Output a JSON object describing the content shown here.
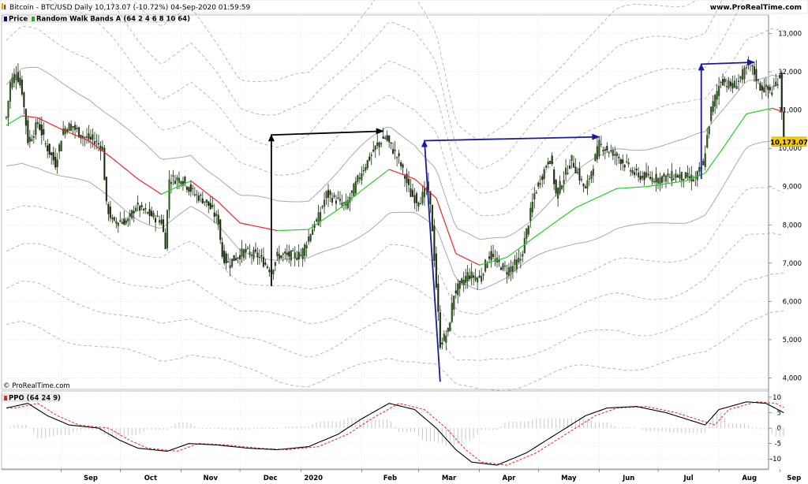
{
  "header": {
    "title": "Bitcoin - BTC/USD Daily 10,173.07 (-10.72%) 04-Sep-2020 01:59:59",
    "website": "www.ProRealTime.com",
    "watermark": "© ProRealTime.com"
  },
  "legend": {
    "price_label": "Price",
    "bands_label": "Random Walk Bands A (64 2 4 6 8 10 64)",
    "ppo_label": "PPO (64 24 9)"
  },
  "colors": {
    "bullish_candle": "#2f5f1f",
    "bearish_candle": "#1a2e10",
    "ma_up": "#22cc22",
    "ma_down": "#ee2222",
    "inner_band": "#aaaaaa",
    "outer_bands": "#aaaaaa",
    "arrow_black": "#000000",
    "arrow_blue": "#1a1aa0",
    "price_tag": "#f5cc00",
    "ppo_line": "#000000",
    "ppo_signal": "#ee2222",
    "ppo_hist": "#c8c8c8"
  },
  "chart_data": [
    {
      "type": "candlestick",
      "title": "Bitcoin - BTC/USD Daily",
      "last_price": "10,173.07",
      "y_ticks": [
        "4,000",
        "5,000",
        "6,000",
        "7,000",
        "8,000",
        "9,000",
        "10,000",
        "11,000",
        "12,000",
        "13,000"
      ],
      "x_ticks": [
        "Sep",
        "Oct",
        "Nov",
        "Dec",
        "2020",
        "Feb",
        "Mar",
        "Apr",
        "May",
        "Jun",
        "Jul",
        "Aug",
        "Sep"
      ],
      "ylim": [
        3700,
        13300
      ],
      "price_path": [
        [
          "2019-08-04",
          10800
        ],
        [
          "2019-08-06",
          11700
        ],
        [
          "2019-08-09",
          12000
        ],
        [
          "2019-08-12",
          11500
        ],
        [
          "2019-08-15",
          10200
        ],
        [
          "2019-08-18",
          10400
        ],
        [
          "2019-08-20",
          10700
        ],
        [
          "2019-08-24",
          10100
        ],
        [
          "2019-08-29",
          9600
        ],
        [
          "2019-09-02",
          10500
        ],
        [
          "2019-09-06",
          10600
        ],
        [
          "2019-09-12",
          10300
        ],
        [
          "2019-09-18",
          10200
        ],
        [
          "2019-09-22",
          10000
        ],
        [
          "2019-09-24",
          8500
        ],
        [
          "2019-09-27",
          8100
        ],
        [
          "2019-10-05",
          8100
        ],
        [
          "2019-10-09",
          8500
        ],
        [
          "2019-10-15",
          8300
        ],
        [
          "2019-10-22",
          8100
        ],
        [
          "2019-10-24",
          7500
        ],
        [
          "2019-10-26",
          9200
        ],
        [
          "2019-11-01",
          9200
        ],
        [
          "2019-11-08",
          8800
        ],
        [
          "2019-11-14",
          8600
        ],
        [
          "2019-11-20",
          8100
        ],
        [
          "2019-11-22",
          7200
        ],
        [
          "2019-11-25",
          7000
        ],
        [
          "2019-12-03",
          7300
        ],
        [
          "2019-12-10",
          7200
        ],
        [
          "2019-12-17",
          6800
        ],
        [
          "2019-12-20",
          7200
        ],
        [
          "2019-12-26",
          7200
        ],
        [
          "2020-01-01",
          7200
        ],
        [
          "2020-01-06",
          7800
        ],
        [
          "2020-01-10",
          8200
        ],
        [
          "2020-01-14",
          8800
        ],
        [
          "2020-01-24",
          8500
        ],
        [
          "2020-02-01",
          9400
        ],
        [
          "2020-02-09",
          10100
        ],
        [
          "2020-02-13",
          10300
        ],
        [
          "2020-02-20",
          9700
        ],
        [
          "2020-02-26",
          8800
        ],
        [
          "2020-03-01",
          8600
        ],
        [
          "2020-03-06",
          9000
        ],
        [
          "2020-03-08",
          7900
        ],
        [
          "2020-03-12",
          4900
        ],
        [
          "2020-03-16",
          5200
        ],
        [
          "2020-03-19",
          6200
        ],
        [
          "2020-03-26",
          6700
        ],
        [
          "2020-04-01",
          6600
        ],
        [
          "2020-04-06",
          7200
        ],
        [
          "2020-04-15",
          6800
        ],
        [
          "2020-04-22",
          7100
        ],
        [
          "2020-04-29",
          8800
        ],
        [
          "2020-05-07",
          9800
        ],
        [
          "2020-05-10",
          8800
        ],
        [
          "2020-05-18",
          9700
        ],
        [
          "2020-05-25",
          8900
        ],
        [
          "2020-06-01",
          10100
        ],
        [
          "2020-06-10",
          9800
        ],
        [
          "2020-06-20",
          9300
        ],
        [
          "2020-07-01",
          9200
        ],
        [
          "2020-07-10",
          9300
        ],
        [
          "2020-07-20",
          9200
        ],
        [
          "2020-07-24",
          9600
        ],
        [
          "2020-07-28",
          11000
        ],
        [
          "2020-08-02",
          11800
        ],
        [
          "2020-08-08",
          11600
        ],
        [
          "2020-08-17",
          12200
        ],
        [
          "2020-08-22",
          11600
        ],
        [
          "2020-08-28",
          11500
        ],
        [
          "2020-09-01",
          11900
        ],
        [
          "2020-09-03",
          10200
        ]
      ],
      "ma_path": [
        [
          "2019-08-04",
          10600
        ],
        [
          "2019-08-12",
          10850
        ],
        [
          "2019-08-20",
          10800
        ],
        [
          "2019-09-01",
          10500
        ],
        [
          "2019-09-15",
          10200
        ],
        [
          "2019-09-28",
          9700
        ],
        [
          "2019-10-10",
          9200
        ],
        [
          "2019-10-22",
          8800
        ],
        [
          "2019-10-26",
          8900
        ],
        [
          "2019-11-06",
          9150
        ],
        [
          "2019-11-20",
          8600
        ],
        [
          "2019-12-01",
          8050
        ],
        [
          "2019-12-20",
          7850
        ],
        [
          "2020-01-05",
          7880
        ],
        [
          "2020-01-20",
          8400
        ],
        [
          "2020-02-01",
          8900
        ],
        [
          "2020-02-15",
          9450
        ],
        [
          "2020-02-28",
          9200
        ],
        [
          "2020-03-10",
          8700
        ],
        [
          "2020-03-20",
          7250
        ],
        [
          "2020-04-01",
          6950
        ],
        [
          "2020-04-15",
          7150
        ],
        [
          "2020-05-01",
          7750
        ],
        [
          "2020-05-20",
          8450
        ],
        [
          "2020-06-10",
          8950
        ],
        [
          "2020-06-25",
          9000
        ],
        [
          "2020-07-15",
          9150
        ],
        [
          "2020-07-25",
          9350
        ],
        [
          "2020-08-03",
          10000
        ],
        [
          "2020-08-15",
          10900
        ],
        [
          "2020-08-28",
          11050
        ],
        [
          "2020-09-03",
          10950
        ]
      ],
      "annotations": [
        {
          "color": "black",
          "points": [
            [
              "2019-12-17",
              6400
            ],
            [
              "2019-12-17",
              10350
            ],
            [
              "2020-02-12",
              10450
            ]
          ]
        },
        {
          "color": "blue",
          "points": [
            [
              "2020-03-12",
              3900
            ],
            [
              "2020-03-04",
              10200
            ],
            [
              "2020-06-01",
              10300
            ]
          ]
        },
        {
          "color": "blue",
          "points": [
            [
              "2020-07-23",
              9200
            ],
            [
              "2020-07-23",
              12200
            ],
            [
              "2020-08-19",
              12250
            ]
          ]
        }
      ],
      "indicator": "Random Walk Bands A (64 2 4 6 8 10 64)"
    },
    {
      "type": "line",
      "title": "PPO (64 24 9)",
      "y_ticks": [
        "-10",
        "-5",
        "0",
        "5",
        "10"
      ],
      "ylim": [
        -13,
        11.5
      ],
      "ppo_path": [
        [
          "2019-08-04",
          6.5
        ],
        [
          "2019-08-15",
          8
        ],
        [
          "2019-08-25",
          4
        ],
        [
          "2019-09-05",
          1
        ],
        [
          "2019-09-20",
          0
        ],
        [
          "2019-10-01",
          -4
        ],
        [
          "2019-10-10",
          -6.5
        ],
        [
          "2019-10-25",
          -7.5
        ],
        [
          "2019-11-05",
          -5
        ],
        [
          "2019-11-20",
          -5.5
        ],
        [
          "2019-12-05",
          -6.5
        ],
        [
          "2019-12-20",
          -7
        ],
        [
          "2020-01-05",
          -6
        ],
        [
          "2020-01-20",
          -2
        ],
        [
          "2020-02-01",
          3
        ],
        [
          "2020-02-15",
          8
        ],
        [
          "2020-02-28",
          6
        ],
        [
          "2020-03-10",
          0
        ],
        [
          "2020-03-20",
          -7
        ],
        [
          "2020-03-28",
          -11
        ],
        [
          "2020-04-10",
          -12
        ],
        [
          "2020-04-25",
          -8
        ],
        [
          "2020-05-10",
          -2
        ],
        [
          "2020-05-25",
          4
        ],
        [
          "2020-06-05",
          6.5
        ],
        [
          "2020-06-20",
          7
        ],
        [
          "2020-07-05",
          5
        ],
        [
          "2020-07-20",
          2
        ],
        [
          "2020-07-25",
          1
        ],
        [
          "2020-08-01",
          6
        ],
        [
          "2020-08-15",
          8.5
        ],
        [
          "2020-08-25",
          8
        ],
        [
          "2020-09-03",
          5
        ]
      ],
      "signal_lag_days": 5
    }
  ]
}
